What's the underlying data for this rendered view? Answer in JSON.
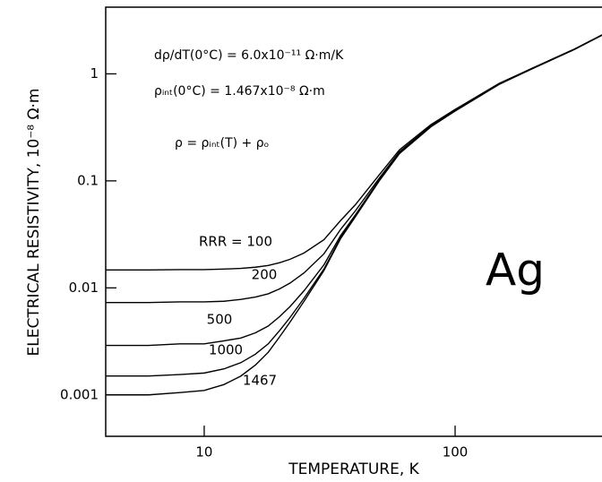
{
  "chart_data": {
    "type": "line",
    "xlabel": "TEMPERATURE, K",
    "ylabel": "ELECTRICAL RESISTIVITY, 10⁻⁸ Ω·m",
    "annotations": [
      "dρ/dT(0°C) = 6.0x10⁻¹¹ Ω·m/K",
      "ρᵢₙₜ(0°C) = 1.467x10⁻⁸ Ω·m",
      "ρ = ρᵢₙₜ(T) + ρₒ",
      "Ag"
    ],
    "xscale": "log",
    "yscale": "log",
    "xlim": [
      4.05,
      385
    ],
    "ylim": [
      0.00041,
      4.2
    ],
    "xticks": [
      10,
      100
    ],
    "yticks": [
      0.001,
      0.01,
      0.1,
      1
    ],
    "x": [
      4,
      6,
      8,
      10,
      12,
      14,
      16,
      18,
      20,
      22,
      25,
      30,
      35,
      40,
      50,
      60,
      80,
      100,
      150,
      200,
      300,
      385
    ],
    "series": [
      {
        "name": "RRR = 100",
        "color": "#000000",
        "values": [
          0.0147,
          0.0147,
          0.0148,
          0.0148,
          0.015,
          0.0152,
          0.0156,
          0.0162,
          0.0172,
          0.0185,
          0.0212,
          0.0282,
          0.0427,
          0.0597,
          0.115,
          0.195,
          0.335,
          0.465,
          0.815,
          1.11,
          1.71,
          2.31
        ]
      },
      {
        "name": "200",
        "color": "#000000",
        "values": [
          0.0073,
          0.0073,
          0.0074,
          0.0074,
          0.0075,
          0.0078,
          0.0082,
          0.0088,
          0.0098,
          0.0111,
          0.0138,
          0.0208,
          0.0353,
          0.0523,
          0.107,
          0.187,
          0.327,
          0.457,
          0.807,
          1.11,
          1.71,
          2.31
        ]
      },
      {
        "name": "500",
        "color": "#000000",
        "values": [
          0.0029,
          0.0029,
          0.003,
          0.003,
          0.0032,
          0.0034,
          0.0038,
          0.0044,
          0.0054,
          0.0067,
          0.0094,
          0.0164,
          0.0309,
          0.0479,
          0.103,
          0.183,
          0.323,
          0.453,
          0.803,
          1.1,
          1.7,
          2.3
        ]
      },
      {
        "name": "1000",
        "color": "#000000",
        "values": [
          0.0015,
          0.0015,
          0.00155,
          0.0016,
          0.00175,
          0.002,
          0.0024,
          0.003,
          0.004,
          0.0053,
          0.008,
          0.015,
          0.0295,
          0.0465,
          0.1015,
          0.18,
          0.32,
          0.45,
          0.8,
          1.1,
          1.7,
          2.3
        ]
      },
      {
        "name": "1467",
        "color": "#000000",
        "values": [
          0.001,
          0.001,
          0.00105,
          0.0011,
          0.00125,
          0.0015,
          0.0019,
          0.0025,
          0.0035,
          0.0048,
          0.0075,
          0.0145,
          0.029,
          0.046,
          0.101,
          0.18,
          0.32,
          0.45,
          0.8,
          1.1,
          1.7,
          2.3
        ]
      }
    ]
  }
}
